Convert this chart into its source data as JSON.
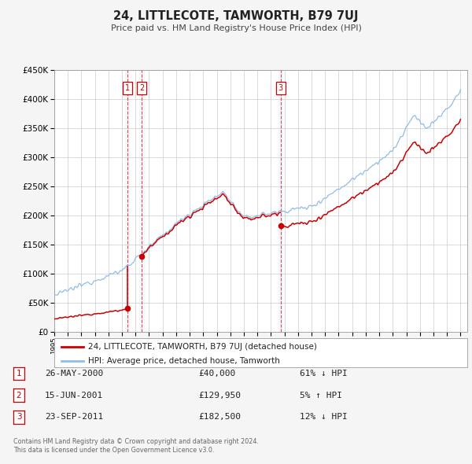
{
  "title": "24, LITTLECOTE, TAMWORTH, B79 7UJ",
  "subtitle": "Price paid vs. HM Land Registry's House Price Index (HPI)",
  "hpi_label": "HPI: Average price, detached house, Tamworth",
  "property_label": "24, LITTLECOTE, TAMWORTH, B79 7UJ (detached house)",
  "hpi_color": "#90bce8",
  "property_color": "#cc0000",
  "ylim": [
    0,
    450000
  ],
  "yticks": [
    0,
    50000,
    100000,
    150000,
    200000,
    250000,
    300000,
    350000,
    400000,
    450000
  ],
  "xlim_start": 1995.0,
  "xlim_end": 2025.5,
  "transactions": [
    {
      "id": 1,
      "date": "26-MAY-2000",
      "price": 40000,
      "pct": "61%",
      "dir": "↓",
      "year": 2000.39
    },
    {
      "id": 2,
      "date": "15-JUN-2001",
      "price": 129950,
      "pct": "5%",
      "dir": "↑",
      "year": 2001.45
    },
    {
      "id": 3,
      "date": "23-SEP-2011",
      "price": 182500,
      "pct": "12%",
      "dir": "↓",
      "year": 2011.72
    }
  ],
  "footnote1": "Contains HM Land Registry data © Crown copyright and database right 2024.",
  "footnote2": "This data is licensed under the Open Government Licence v3.0.",
  "background_color": "#f5f5f5",
  "plot_background": "#ffffff",
  "grid_color": "#cccccc",
  "shade_color": "#dde8f5"
}
